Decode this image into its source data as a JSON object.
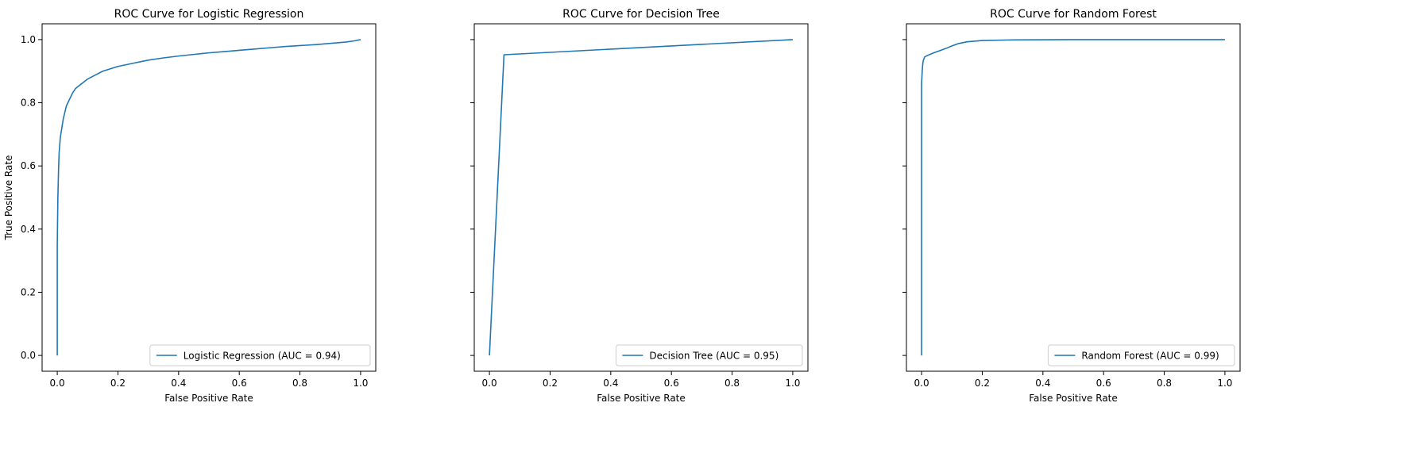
{
  "chart_data": [
    {
      "type": "line",
      "title": "ROC Curve for Logistic Regression",
      "xlabel": "False Positive Rate",
      "ylabel": "True Positive Rate",
      "xlim": [
        -0.05,
        1.05
      ],
      "ylim": [
        -0.05,
        1.05
      ],
      "xticks": [
        "0.0",
        "0.2",
        "0.4",
        "0.6",
        "0.8",
        "1.0"
      ],
      "yticks": [
        "0.0",
        "0.2",
        "0.4",
        "0.6",
        "0.8",
        "1.0"
      ],
      "grid": false,
      "legend_position": "lower-right",
      "series": [
        {
          "name": "Logistic Regression (AUC = 0.94)",
          "color": "#1f77b4",
          "x": [
            0.0,
            0.0,
            0.002,
            0.004,
            0.006,
            0.01,
            0.015,
            0.02,
            0.03,
            0.04,
            0.05,
            0.06,
            0.08,
            0.1,
            0.12,
            0.15,
            0.2,
            0.25,
            0.3,
            0.35,
            0.4,
            0.45,
            0.5,
            0.55,
            0.6,
            0.65,
            0.7,
            0.75,
            0.8,
            0.85,
            0.9,
            0.95,
            0.98,
            1.0
          ],
          "y": [
            0.0,
            0.35,
            0.5,
            0.58,
            0.64,
            0.69,
            0.72,
            0.75,
            0.79,
            0.81,
            0.83,
            0.845,
            0.86,
            0.875,
            0.885,
            0.9,
            0.915,
            0.925,
            0.935,
            0.942,
            0.948,
            0.953,
            0.958,
            0.962,
            0.966,
            0.97,
            0.974,
            0.978,
            0.981,
            0.984,
            0.988,
            0.992,
            0.996,
            1.0
          ]
        }
      ]
    },
    {
      "type": "line",
      "title": "ROC Curve for Decision Tree",
      "xlabel": "False Positive Rate",
      "ylabel": "",
      "xlim": [
        -0.05,
        1.05
      ],
      "ylim": [
        -0.05,
        1.05
      ],
      "xticks": [
        "0.0",
        "0.2",
        "0.4",
        "0.6",
        "0.8",
        "1.0"
      ],
      "yticks": [],
      "grid": false,
      "legend_position": "lower-right",
      "series": [
        {
          "name": "Decision Tree (AUC = 0.95)",
          "color": "#1f77b4",
          "x": [
            0.0,
            0.048,
            1.0
          ],
          "y": [
            0.0,
            0.952,
            1.0
          ]
        }
      ]
    },
    {
      "type": "line",
      "title": "ROC Curve for Random Forest",
      "xlabel": "False Positive Rate",
      "ylabel": "",
      "xlim": [
        -0.05,
        1.05
      ],
      "ylim": [
        -0.05,
        1.05
      ],
      "xticks": [
        "0.0",
        "0.2",
        "0.4",
        "0.6",
        "0.8",
        "1.0"
      ],
      "yticks": [],
      "grid": false,
      "legend_position": "lower-right",
      "series": [
        {
          "name": "Random Forest (AUC = 0.99)",
          "color": "#1f77b4",
          "x": [
            0.0,
            0.0,
            0.002,
            0.004,
            0.006,
            0.01,
            0.02,
            0.04,
            0.06,
            0.08,
            0.1,
            0.12,
            0.15,
            0.2,
            0.3,
            0.5,
            0.7,
            1.0
          ],
          "y": [
            0.0,
            0.86,
            0.9,
            0.925,
            0.935,
            0.945,
            0.95,
            0.958,
            0.965,
            0.972,
            0.98,
            0.987,
            0.993,
            0.997,
            0.999,
            1.0,
            1.0,
            1.0
          ]
        }
      ]
    }
  ]
}
